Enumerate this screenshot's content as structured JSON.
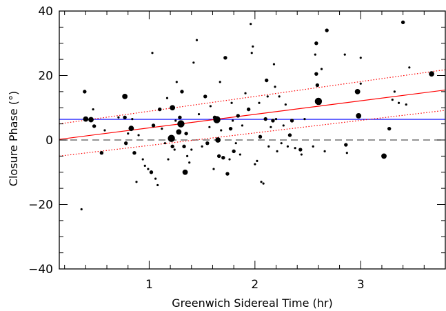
{
  "chart_data": {
    "type": "scatter",
    "xlabel": "Greenwich Sidereal Time (hr)",
    "ylabel": "Closure Phase (°)",
    "xlim": [
      0.15,
      3.8
    ],
    "ylim": [
      -40,
      40
    ],
    "x_ticks": [
      1,
      2,
      3
    ],
    "x_tick_labels": [
      "1",
      "2",
      "3"
    ],
    "x_minor_step": 0.2,
    "y_ticks": [
      -40,
      -20,
      0,
      20,
      40
    ],
    "y_tick_labels": [
      "−40",
      "−20",
      "0",
      "20",
      "40"
    ],
    "y_minor_step": 5,
    "grid": false,
    "colors": {
      "points": "#000000",
      "fit": "#ff0000",
      "mean": "#0000ff",
      "zero": "#555555"
    },
    "reference_lines": [
      {
        "kind": "zero",
        "style": "dashed",
        "color": "#555555",
        "x": [
          0.15,
          3.8
        ],
        "y": [
          0,
          0
        ]
      },
      {
        "kind": "mean",
        "style": "solid",
        "color": "#0000ff",
        "x": [
          0.15,
          3.8
        ],
        "y": [
          6.4,
          6.4
        ]
      },
      {
        "kind": "linear-fit",
        "style": "solid",
        "color": "#ff0000",
        "x": [
          0.15,
          3.8
        ],
        "y": [
          0.2,
          15.5
        ]
      },
      {
        "kind": "fit-upper-bound",
        "style": "dotted",
        "color": "#ff0000",
        "x": [
          0.15,
          3.8
        ],
        "y": [
          5.0,
          21.8
        ]
      },
      {
        "kind": "fit-lower-bound",
        "style": "dotted",
        "color": "#ff0000",
        "x": [
          0.15,
          3.8
        ],
        "y": [
          -5.0,
          9.2
        ]
      }
    ],
    "points": [
      {
        "x": 0.36,
        "y": -21.5,
        "s": 1
      },
      {
        "x": 0.39,
        "y": 15.0,
        "s": 2
      },
      {
        "x": 0.4,
        "y": 6.5,
        "s": 3
      },
      {
        "x": 0.45,
        "y": 6.3,
        "s": 3
      },
      {
        "x": 0.47,
        "y": 9.5,
        "s": 1
      },
      {
        "x": 0.48,
        "y": 4.3,
        "s": 2
      },
      {
        "x": 0.55,
        "y": -4.0,
        "s": 2
      },
      {
        "x": 0.58,
        "y": 3.0,
        "s": 1
      },
      {
        "x": 0.71,
        "y": 7.0,
        "s": 1
      },
      {
        "x": 0.77,
        "y": 13.5,
        "s": 3
      },
      {
        "x": 0.77,
        "y": 7.0,
        "s": 2
      },
      {
        "x": 0.78,
        "y": -1.0,
        "s": 2
      },
      {
        "x": 0.8,
        "y": 2.0,
        "s": 1
      },
      {
        "x": 0.83,
        "y": 3.6,
        "s": 3
      },
      {
        "x": 0.84,
        "y": 6.5,
        "s": 1
      },
      {
        "x": 0.86,
        "y": -4.0,
        "s": 2
      },
      {
        "x": 0.88,
        "y": -13.0,
        "s": 1
      },
      {
        "x": 0.9,
        "y": 1.5,
        "s": 1
      },
      {
        "x": 0.94,
        "y": -6.0,
        "s": 1
      },
      {
        "x": 0.96,
        "y": -8.0,
        "s": 1
      },
      {
        "x": 0.99,
        "y": -9.0,
        "s": 1
      },
      {
        "x": 1.02,
        "y": -10.0,
        "s": 2
      },
      {
        "x": 1.03,
        "y": 27.0,
        "s": 1
      },
      {
        "x": 1.04,
        "y": 4.5,
        "s": 2
      },
      {
        "x": 1.06,
        "y": -12.0,
        "s": 1
      },
      {
        "x": 1.08,
        "y": -14.0,
        "s": 1
      },
      {
        "x": 1.1,
        "y": 9.5,
        "s": 2
      },
      {
        "x": 1.12,
        "y": 3.5,
        "s": 1
      },
      {
        "x": 1.15,
        "y": -1.0,
        "s": 1
      },
      {
        "x": 1.17,
        "y": 13.0,
        "s": 1
      },
      {
        "x": 1.18,
        "y": -6.0,
        "s": 1
      },
      {
        "x": 1.21,
        "y": 0.5,
        "s": 4
      },
      {
        "x": 1.22,
        "y": 10.0,
        "s": 3
      },
      {
        "x": 1.22,
        "y": -2.0,
        "s": 2
      },
      {
        "x": 1.24,
        "y": -3.0,
        "s": 1
      },
      {
        "x": 1.25,
        "y": 6.0,
        "s": 1
      },
      {
        "x": 1.26,
        "y": 18.0,
        "s": 1
      },
      {
        "x": 1.28,
        "y": 2.5,
        "s": 3
      },
      {
        "x": 1.29,
        "y": 7.0,
        "s": 2
      },
      {
        "x": 1.3,
        "y": 5.0,
        "s": 4
      },
      {
        "x": 1.31,
        "y": 15.0,
        "s": 2
      },
      {
        "x": 1.33,
        "y": -2.0,
        "s": 2
      },
      {
        "x": 1.34,
        "y": -10.0,
        "s": 3
      },
      {
        "x": 1.35,
        "y": 2.0,
        "s": 2
      },
      {
        "x": 1.36,
        "y": -5.0,
        "s": 1
      },
      {
        "x": 1.38,
        "y": -7.0,
        "s": 1
      },
      {
        "x": 1.4,
        "y": -3.0,
        "s": 1
      },
      {
        "x": 1.42,
        "y": 24.0,
        "s": 1
      },
      {
        "x": 1.45,
        "y": 31.0,
        "s": 1
      },
      {
        "x": 1.47,
        "y": 8.0,
        "s": 1
      },
      {
        "x": 1.5,
        "y": -2.0,
        "s": 1
      },
      {
        "x": 1.53,
        "y": 13.5,
        "s": 2
      },
      {
        "x": 1.55,
        "y": -1.0,
        "s": 2
      },
      {
        "x": 1.57,
        "y": 4.0,
        "s": 1
      },
      {
        "x": 1.58,
        "y": 10.5,
        "s": 1
      },
      {
        "x": 1.61,
        "y": -9.0,
        "s": 1
      },
      {
        "x": 1.62,
        "y": 7.0,
        "s": 2
      },
      {
        "x": 1.64,
        "y": 6.3,
        "s": 4
      },
      {
        "x": 1.65,
        "y": 0.0,
        "s": 3
      },
      {
        "x": 1.66,
        "y": -5.0,
        "s": 2
      },
      {
        "x": 1.67,
        "y": 18.0,
        "s": 1
      },
      {
        "x": 1.68,
        "y": 3.0,
        "s": 1
      },
      {
        "x": 1.7,
        "y": -5.5,
        "s": 2
      },
      {
        "x": 1.72,
        "y": 25.5,
        "s": 2
      },
      {
        "x": 1.74,
        "y": -10.5,
        "s": 2
      },
      {
        "x": 1.76,
        "y": -6.0,
        "s": 1
      },
      {
        "x": 1.77,
        "y": 3.5,
        "s": 2
      },
      {
        "x": 1.78,
        "y": 11.5,
        "s": 1
      },
      {
        "x": 1.79,
        "y": 6.0,
        "s": 1
      },
      {
        "x": 1.8,
        "y": -3.5,
        "s": 2
      },
      {
        "x": 1.82,
        "y": -1.0,
        "s": 1
      },
      {
        "x": 1.84,
        "y": 7.5,
        "s": 2
      },
      {
        "x": 1.86,
        "y": -4.5,
        "s": 1
      },
      {
        "x": 1.88,
        "y": 4.5,
        "s": 1
      },
      {
        "x": 1.91,
        "y": 14.5,
        "s": 1
      },
      {
        "x": 1.94,
        "y": 9.5,
        "s": 2
      },
      {
        "x": 1.96,
        "y": 36.0,
        "s": 1
      },
      {
        "x": 1.97,
        "y": 27.0,
        "s": 1
      },
      {
        "x": 1.98,
        "y": 29.0,
        "s": 1
      },
      {
        "x": 2.0,
        "y": -7.5,
        "s": 1
      },
      {
        "x": 2.02,
        "y": -6.5,
        "s": 1
      },
      {
        "x": 2.04,
        "y": 11.5,
        "s": 1
      },
      {
        "x": 2.05,
        "y": 1.0,
        "s": 2
      },
      {
        "x": 2.06,
        "y": -13.0,
        "s": 1
      },
      {
        "x": 2.08,
        "y": -13.5,
        "s": 1
      },
      {
        "x": 2.1,
        "y": 6.5,
        "s": 2
      },
      {
        "x": 2.11,
        "y": 18.5,
        "s": 2
      },
      {
        "x": 2.12,
        "y": 13.5,
        "s": 1
      },
      {
        "x": 2.13,
        "y": -2.0,
        "s": 1
      },
      {
        "x": 2.15,
        "y": 4.0,
        "s": 1
      },
      {
        "x": 2.17,
        "y": 6.0,
        "s": 2
      },
      {
        "x": 2.18,
        "y": 23.5,
        "s": 1
      },
      {
        "x": 2.19,
        "y": 16.5,
        "s": 1
      },
      {
        "x": 2.21,
        "y": -3.5,
        "s": 1
      },
      {
        "x": 2.23,
        "y": 13.5,
        "s": 1
      },
      {
        "x": 2.25,
        "y": -1.0,
        "s": 1
      },
      {
        "x": 2.27,
        "y": 4.5,
        "s": 1
      },
      {
        "x": 2.29,
        "y": 11.0,
        "s": 1
      },
      {
        "x": 2.31,
        "y": -2.0,
        "s": 1
      },
      {
        "x": 2.33,
        "y": 1.5,
        "s": 2
      },
      {
        "x": 2.35,
        "y": 6.0,
        "s": 2
      },
      {
        "x": 2.38,
        "y": -2.5,
        "s": 1
      },
      {
        "x": 2.43,
        "y": -3.0,
        "s": 2
      },
      {
        "x": 2.44,
        "y": -4.5,
        "s": 1
      },
      {
        "x": 2.47,
        "y": 6.5,
        "s": 1
      },
      {
        "x": 2.55,
        "y": -2.0,
        "s": 1
      },
      {
        "x": 2.57,
        "y": 26.5,
        "s": 1
      },
      {
        "x": 2.58,
        "y": 30.0,
        "s": 2
      },
      {
        "x": 2.58,
        "y": 20.5,
        "s": 2
      },
      {
        "x": 2.59,
        "y": 17.0,
        "s": 2
      },
      {
        "x": 2.6,
        "y": 12.0,
        "s": 4
      },
      {
        "x": 2.61,
        "y": 11.5,
        "s": 2
      },
      {
        "x": 2.63,
        "y": 22.0,
        "s": 1
      },
      {
        "x": 2.66,
        "y": -3.5,
        "s": 1
      },
      {
        "x": 2.68,
        "y": 34.0,
        "s": 2
      },
      {
        "x": 2.85,
        "y": 26.5,
        "s": 1
      },
      {
        "x": 2.86,
        "y": -1.5,
        "s": 2
      },
      {
        "x": 2.87,
        "y": -4.0,
        "s": 1
      },
      {
        "x": 2.97,
        "y": 15.0,
        "s": 3
      },
      {
        "x": 2.98,
        "y": 7.5,
        "s": 3
      },
      {
        "x": 3.0,
        "y": 25.5,
        "s": 1
      },
      {
        "x": 3.0,
        "y": 17.5,
        "s": 1
      },
      {
        "x": 3.22,
        "y": -5.0,
        "s": 3
      },
      {
        "x": 3.27,
        "y": 3.5,
        "s": 2
      },
      {
        "x": 3.3,
        "y": 12.5,
        "s": 1
      },
      {
        "x": 3.32,
        "y": 15.0,
        "s": 1
      },
      {
        "x": 3.36,
        "y": 11.5,
        "s": 1
      },
      {
        "x": 3.4,
        "y": 36.5,
        "s": 2
      },
      {
        "x": 3.46,
        "y": 22.5,
        "s": 1
      },
      {
        "x": 3.67,
        "y": 20.5,
        "s": 3
      },
      {
        "x": 3.43,
        "y": 11.0,
        "s": 1
      },
      {
        "x": 2.2,
        "y": 6.5,
        "s": 1
      }
    ]
  }
}
